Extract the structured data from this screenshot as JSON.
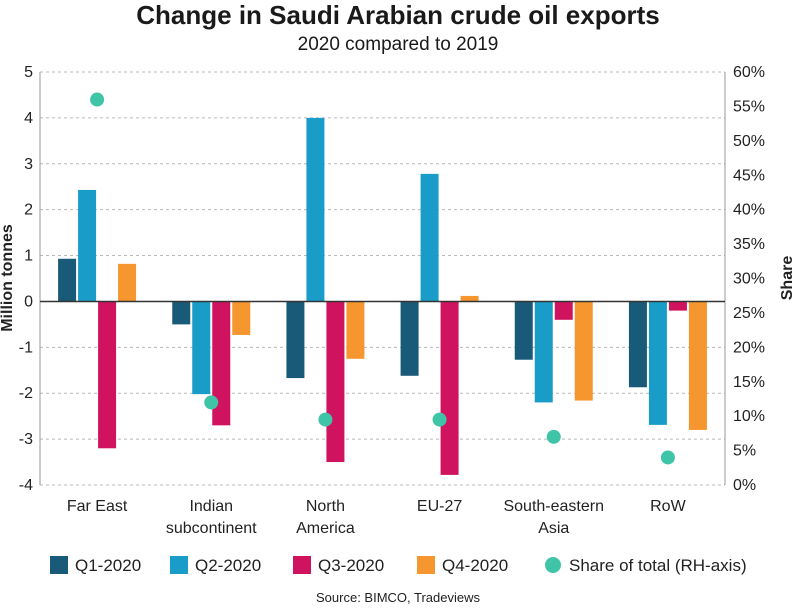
{
  "chart_data": {
    "type": "bar",
    "title": "Change in Saudi Arabian crude oil exports",
    "subtitle": "2020 compared to 2019",
    "ylabel": "Million tonnes",
    "y2label": "Share",
    "ylim": [
      -4,
      5
    ],
    "y2lim": [
      0,
      60
    ],
    "yticks": [
      "5",
      "4",
      "3",
      "2",
      "1",
      "0",
      "-1",
      "-2",
      "-3",
      "-4"
    ],
    "y2ticks": [
      "60%",
      "55%",
      "50%",
      "45%",
      "40%",
      "35%",
      "30%",
      "25%",
      "20%",
      "15%",
      "10%",
      "5%",
      "0%"
    ],
    "grid": true,
    "legend_position": "bottom",
    "categories": [
      [
        "Far East"
      ],
      [
        "Indian",
        "subcontinent"
      ],
      [
        "North",
        "America"
      ],
      [
        "EU-27"
      ],
      [
        "South-eastern",
        "Asia"
      ],
      [
        "RoW"
      ]
    ],
    "series": [
      {
        "name": "Q1-2020",
        "color": "#195a78",
        "values": [
          0.93,
          -0.5,
          -1.67,
          -1.62,
          -1.27,
          -1.87
        ]
      },
      {
        "name": "Q2-2020",
        "color": "#1a9cc9",
        "values": [
          2.43,
          -2.02,
          4.0,
          2.78,
          -2.2,
          -2.69
        ]
      },
      {
        "name": "Q3-2020",
        "color": "#d0135e",
        "values": [
          -3.2,
          -2.7,
          -3.5,
          -3.78,
          -0.4,
          -0.2
        ]
      },
      {
        "name": "Q4-2020",
        "color": "#f5962e",
        "values": [
          0.82,
          -0.73,
          -1.25,
          0.12,
          -2.16,
          -2.8
        ]
      }
    ],
    "share_series": {
      "name": "Share of total (RH-axis)",
      "color": "#3fc4a8",
      "values": [
        56,
        12,
        9.5,
        9.5,
        7,
        4
      ]
    },
    "source": "Source: BIMCO, Tradeviews"
  }
}
